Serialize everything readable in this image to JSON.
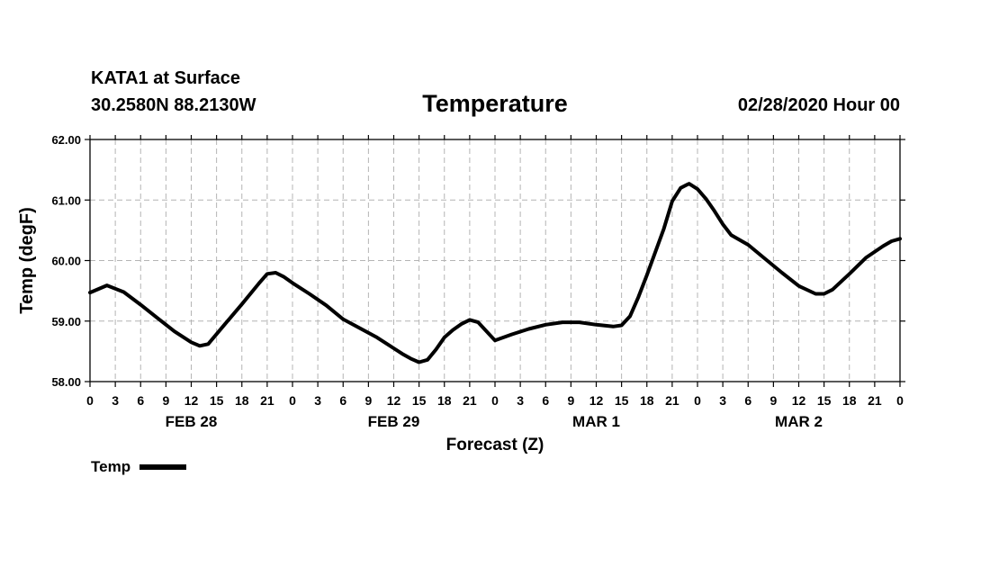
{
  "header": {
    "station": "KATA1 at Surface",
    "coordinates": "30.2580N 88.2130W",
    "title": "Temperature",
    "valid_time": "02/28/2020 Hour 00"
  },
  "legend": {
    "label": "Temp",
    "color": "#000000"
  },
  "chart_data": {
    "type": "line",
    "title": "Temperature",
    "xlabel": "Forecast (Z)",
    "ylabel": "Temp (degF)",
    "ylim": [
      58.0,
      62.0
    ],
    "xlim": [
      0,
      96
    ],
    "x_unit": "forecast hour",
    "grid": true,
    "legend_position": "bottom-left",
    "y_ticks": [
      "58.00",
      "59.00",
      "60.00",
      "61.00",
      "62.00"
    ],
    "x_tick_labels": [
      "0",
      "3",
      "6",
      "9",
      "12",
      "15",
      "18",
      "21",
      "0",
      "3",
      "6",
      "9",
      "12",
      "15",
      "18",
      "21",
      "0",
      "3",
      "6",
      "9",
      "12",
      "15",
      "18",
      "21",
      "0",
      "3",
      "6",
      "9",
      "12",
      "15",
      "18",
      "21",
      "0"
    ],
    "day_labels": [
      "FEB 28",
      "FEB 29",
      "MAR 1",
      "MAR 2"
    ],
    "series": [
      {
        "name": "Temp",
        "color": "#000000",
        "x": [
          0,
          2,
          4,
          6,
          8,
          10,
          12,
          13,
          14,
          16,
          18,
          20,
          21,
          22,
          23,
          24,
          26,
          28,
          30,
          32,
          34,
          36,
          37,
          38,
          39,
          40,
          41,
          42,
          43,
          44,
          45,
          46,
          48,
          50,
          52,
          54,
          56,
          58,
          60,
          62,
          63,
          64,
          65,
          66,
          68,
          69,
          70,
          71,
          72,
          73,
          74,
          75,
          76,
          78,
          80,
          82,
          84,
          86,
          87,
          88,
          90,
          92,
          94,
          95,
          96
        ],
        "y": [
          59.47,
          59.59,
          59.48,
          59.27,
          59.05,
          58.83,
          58.65,
          58.59,
          58.62,
          58.95,
          59.28,
          59.62,
          59.78,
          59.8,
          59.73,
          59.63,
          59.45,
          59.26,
          59.03,
          58.88,
          58.73,
          58.55,
          58.46,
          58.38,
          58.32,
          58.36,
          58.53,
          58.73,
          58.85,
          58.95,
          59.02,
          58.98,
          58.68,
          58.78,
          58.87,
          58.94,
          58.98,
          58.98,
          58.94,
          58.91,
          58.93,
          59.08,
          59.4,
          59.76,
          60.52,
          60.98,
          61.2,
          61.27,
          61.18,
          61.02,
          60.82,
          60.6,
          60.42,
          60.26,
          60.03,
          59.8,
          59.58,
          59.45,
          59.45,
          59.52,
          59.78,
          60.05,
          60.24,
          60.32,
          60.36
        ]
      }
    ]
  }
}
